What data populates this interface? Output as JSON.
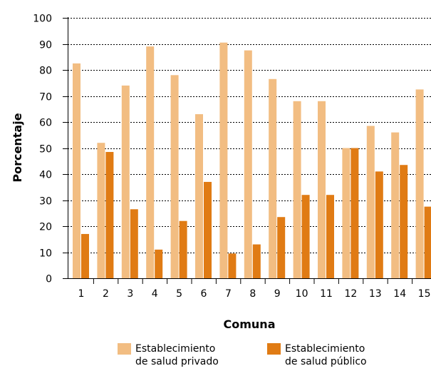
{
  "chart_data": {
    "type": "bar",
    "xlabel": "Comuna",
    "ylabel": "Porcentaje",
    "ylim": [
      0,
      100
    ],
    "yticks": [
      0,
      10,
      20,
      30,
      40,
      50,
      60,
      70,
      80,
      90,
      100
    ],
    "grid": "horizontal dotted",
    "categories": [
      "1",
      "2",
      "3",
      "4",
      "5",
      "6",
      "7",
      "8",
      "9",
      "10",
      "11",
      "12",
      "13",
      "14",
      "15"
    ],
    "series": [
      {
        "name": "Establecimiento\nde salud privado",
        "color": "#f2bd82",
        "values": [
          82.5,
          52,
          74,
          89,
          78,
          63,
          90.5,
          87.5,
          76.5,
          68,
          68,
          50,
          58.5,
          56,
          72.5
        ]
      },
      {
        "name": "Establecimiento\nde salud público",
        "color": "#e07b14",
        "values": [
          17,
          48.5,
          26.5,
          11,
          22,
          37,
          9.5,
          13,
          23.5,
          32,
          32,
          50,
          41,
          43.5,
          27.5
        ]
      }
    ],
    "legend_position": "bottom"
  }
}
